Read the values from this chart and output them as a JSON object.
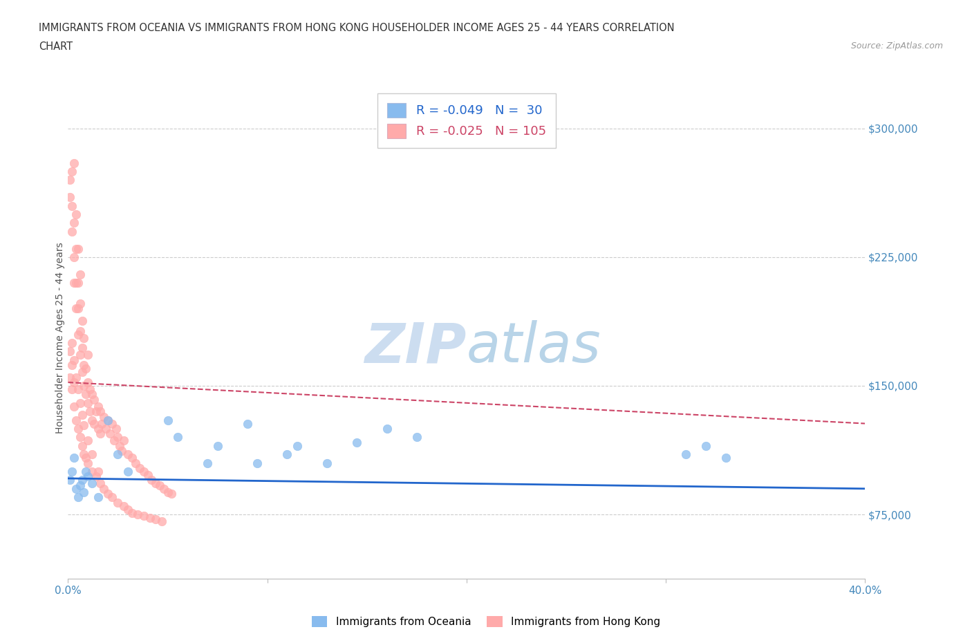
{
  "title_line1": "IMMIGRANTS FROM OCEANIA VS IMMIGRANTS FROM HONG KONG HOUSEHOLDER INCOME AGES 25 - 44 YEARS CORRELATION",
  "title_line2": "CHART",
  "source_text": "Source: ZipAtlas.com",
  "ylabel": "Householder Income Ages 25 - 44 years",
  "xlim": [
    0.0,
    0.4
  ],
  "ylim": [
    37500,
    318750
  ],
  "yticks": [
    75000,
    150000,
    225000,
    300000
  ],
  "ytick_labels": [
    "$75,000",
    "$150,000",
    "$225,000",
    "$300,000"
  ],
  "xtick_labels": [
    "0.0%",
    "",
    "",
    "",
    "40.0%"
  ],
  "xticks": [
    0.0,
    0.1,
    0.2,
    0.3,
    0.4
  ],
  "legend_oceania": "Immigrants from Oceania",
  "legend_hk": "Immigrants from Hong Kong",
  "R_oceania": -0.049,
  "N_oceania": 30,
  "R_hk": -0.025,
  "N_hk": 105,
  "color_oceania": "#88bbee",
  "color_hk": "#ffaaaa",
  "trendline_oceania_color": "#2266cc",
  "trendline_hk_color": "#cc4466",
  "watermark_color": "#ccddf0",
  "background_color": "#ffffff",
  "oceania_trend_y0": 96000,
  "oceania_trend_y1": 90000,
  "hk_trend_y0": 152000,
  "hk_trend_y1": 128000,
  "oceania_x": [
    0.001,
    0.002,
    0.003,
    0.004,
    0.005,
    0.006,
    0.007,
    0.008,
    0.009,
    0.01,
    0.012,
    0.015,
    0.02,
    0.025,
    0.03,
    0.05,
    0.055,
    0.07,
    0.075,
    0.09,
    0.095,
    0.11,
    0.115,
    0.13,
    0.145,
    0.16,
    0.175,
    0.31,
    0.32,
    0.33
  ],
  "oceania_y": [
    95000,
    100000,
    108000,
    90000,
    85000,
    92000,
    95000,
    88000,
    100000,
    97000,
    93000,
    85000,
    130000,
    110000,
    100000,
    130000,
    120000,
    105000,
    115000,
    128000,
    105000,
    110000,
    115000,
    105000,
    117000,
    125000,
    120000,
    110000,
    115000,
    108000
  ],
  "hk_x": [
    0.001,
    0.001,
    0.002,
    0.002,
    0.002,
    0.003,
    0.003,
    0.003,
    0.003,
    0.004,
    0.004,
    0.004,
    0.004,
    0.005,
    0.005,
    0.005,
    0.005,
    0.006,
    0.006,
    0.006,
    0.006,
    0.007,
    0.007,
    0.007,
    0.008,
    0.008,
    0.008,
    0.009,
    0.009,
    0.01,
    0.01,
    0.01,
    0.011,
    0.011,
    0.012,
    0.012,
    0.013,
    0.013,
    0.014,
    0.015,
    0.015,
    0.016,
    0.016,
    0.017,
    0.018,
    0.019,
    0.02,
    0.021,
    0.022,
    0.023,
    0.024,
    0.025,
    0.026,
    0.027,
    0.028,
    0.03,
    0.032,
    0.034,
    0.036,
    0.038,
    0.04,
    0.042,
    0.044,
    0.046,
    0.048,
    0.05,
    0.052,
    0.001,
    0.001,
    0.002,
    0.002,
    0.003,
    0.003,
    0.004,
    0.005,
    0.006,
    0.007,
    0.008,
    0.009,
    0.01,
    0.012,
    0.014,
    0.016,
    0.018,
    0.02,
    0.022,
    0.025,
    0.028,
    0.03,
    0.032,
    0.035,
    0.038,
    0.041,
    0.044,
    0.047,
    0.002,
    0.003,
    0.004,
    0.005,
    0.006,
    0.007,
    0.008,
    0.01,
    0.012,
    0.015
  ],
  "hk_y": [
    260000,
    270000,
    240000,
    255000,
    275000,
    210000,
    225000,
    245000,
    280000,
    195000,
    210000,
    230000,
    250000,
    180000,
    195000,
    210000,
    230000,
    168000,
    182000,
    198000,
    215000,
    158000,
    172000,
    188000,
    150000,
    162000,
    178000,
    145000,
    160000,
    140000,
    152000,
    168000,
    135000,
    148000,
    130000,
    145000,
    128000,
    142000,
    135000,
    125000,
    138000,
    122000,
    135000,
    128000,
    132000,
    125000,
    130000,
    122000,
    128000,
    118000,
    125000,
    120000,
    115000,
    112000,
    118000,
    110000,
    108000,
    105000,
    102000,
    100000,
    98000,
    95000,
    93000,
    92000,
    90000,
    88000,
    87000,
    155000,
    170000,
    148000,
    162000,
    138000,
    152000,
    130000,
    125000,
    120000,
    115000,
    110000,
    108000,
    105000,
    100000,
    97000,
    93000,
    90000,
    87000,
    85000,
    82000,
    80000,
    78000,
    76000,
    75000,
    74000,
    73000,
    72000,
    71000,
    175000,
    165000,
    155000,
    148000,
    140000,
    133000,
    127000,
    118000,
    110000,
    100000
  ]
}
